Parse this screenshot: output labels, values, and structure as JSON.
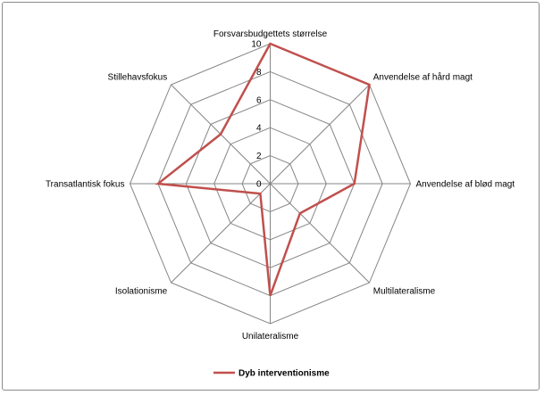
{
  "chart_data": {
    "type": "radar",
    "categories": [
      "Forsvarsbudgettets størrelse",
      "Anvendelse af hård magt",
      "Anvendelse af blød magt",
      "Multilateralisme",
      "Unilateralisme",
      "Isolationisme",
      "Transatlantisk fokus",
      "Stillehavsfokus"
    ],
    "series": [
      {
        "name": "Dyb interventionisme",
        "values": [
          10,
          10,
          6,
          3,
          8,
          1,
          8,
          5
        ],
        "color": "#c0504d"
      }
    ],
    "rlim": [
      0,
      10
    ],
    "ticks": [
      "0",
      "2",
      "4",
      "6",
      "8",
      "10"
    ],
    "grid": true,
    "gridline_color": "#868686",
    "legend_position": "bottom"
  }
}
